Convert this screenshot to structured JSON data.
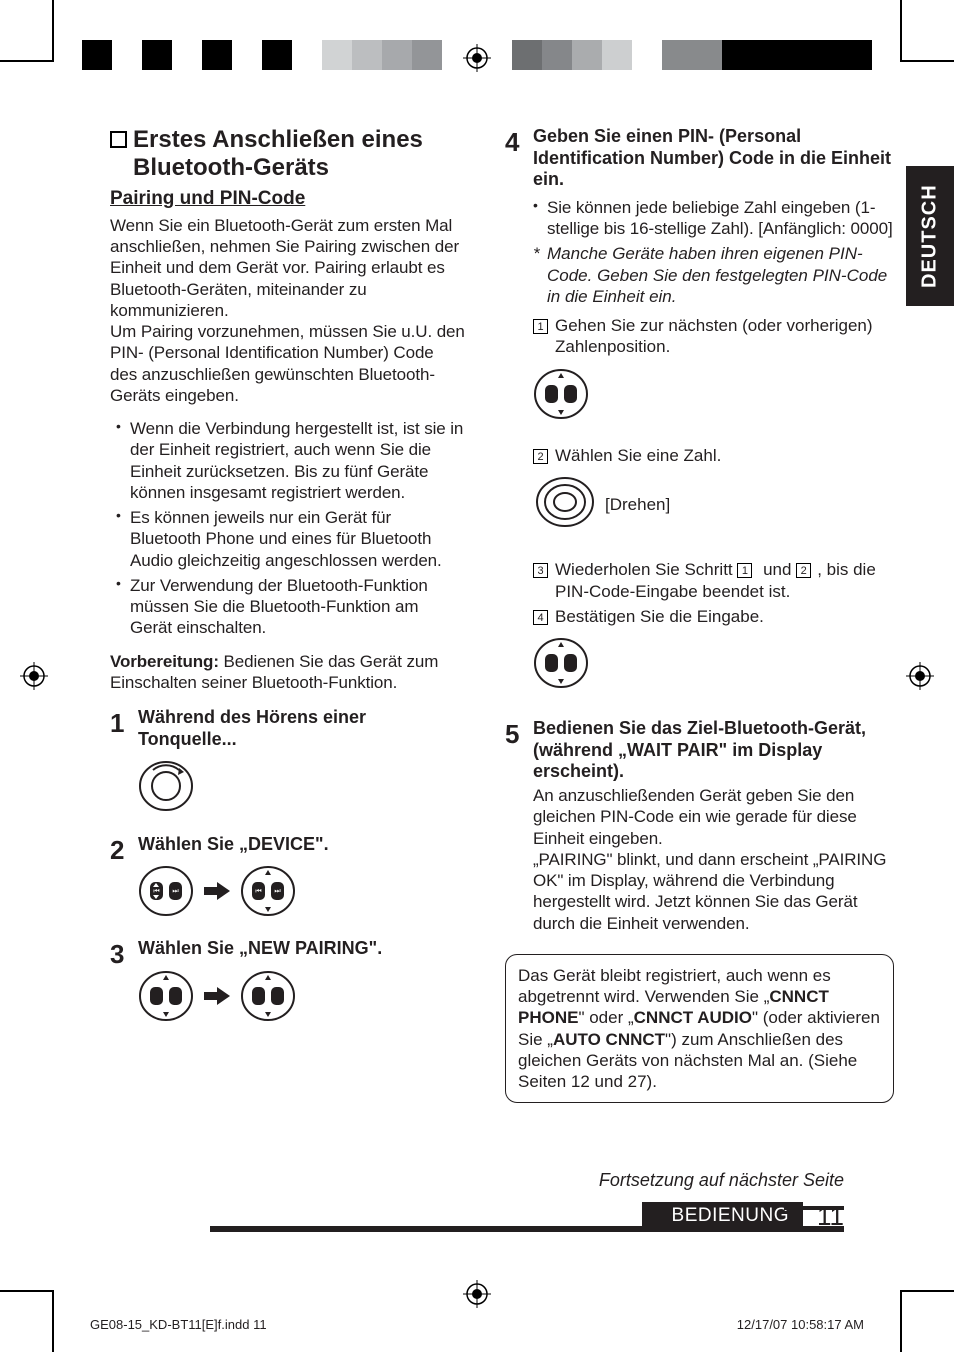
{
  "colorbar_left": [
    "#000000",
    "#ffffff",
    "#000000",
    "#ffffff",
    "#000000",
    "#ffffff",
    "#000000",
    "#ffffff",
    "#d1d3d4",
    "#bcbec0",
    "#a7a9ac",
    "#939598"
  ],
  "colorbar_right": [
    "#000000",
    "#000000",
    "#000000",
    "#000000",
    "#000000",
    "#888a8c",
    "#888a8c",
    "#ffffff",
    "#cdcfd0",
    "#aaacae",
    "#85878a",
    "#6d6f71"
  ],
  "side_tab": "DEUTSCH",
  "left": {
    "h1_line1": "Erstes Anschließen eines",
    "h1_line2": "Bluetooth-Geräts",
    "h2": "Pairing und PIN-Code",
    "intro": "Wenn Sie ein Bluetooth-Gerät zum ersten Mal anschließen, nehmen Sie Pairing zwischen der Einheit und dem Gerät vor. Pairing erlaubt es Bluetooth-Geräten, miteinander zu kommunizieren.\nUm Pairing vorzunehmen, müssen Sie u.U. den PIN- (Personal Identification Number) Code des anzuschließen gewünschten Bluetooth-Geräts eingeben.",
    "bullets": [
      "Wenn die Verbindung hergestellt ist, ist sie in der Einheit registriert, auch wenn Sie die Einheit zurücksetzen. Bis zu fünf Geräte können insgesamt registriert werden.",
      "Es können jeweils nur ein Gerät für Bluetooth Phone und eines für Bluetooth Audio gleichzeitig angeschlossen werden.",
      "Zur Verwendung der Bluetooth-Funktion müssen Sie die Bluetooth-Funktion am Gerät einschalten."
    ],
    "vorbereitung_label": "Vorbereitung:",
    "vorbereitung_text": " Bedienen Sie das Gerät zum Einschalten seiner Bluetooth-Funktion.",
    "step1": "Während des Hörens einer Tonquelle...",
    "step2": "Wählen Sie „DEVICE\".",
    "step3": "Wählen Sie „NEW PAIRING\"."
  },
  "right": {
    "step4_title": "Geben Sie einen PIN- (Personal Identification Number) Code in die Einheit ein.",
    "step4_bullet": "Sie können jede beliebige Zahl eingeben (1-stellige bis 16-stellige Zahl). [Anfänglich: 0000]",
    "step4_asterisk": "Manche Geräte haben ihren eigenen PIN-Code. Geben Sie den festgelegten PIN-Code in die Einheit ein.",
    "sub1": "Gehen Sie zur nächsten (oder vorherigen) Zahlenposition.",
    "sub2": "Wählen Sie eine Zahl.",
    "drehen": "[Drehen]",
    "sub3_a": "Wiederholen Sie Schritt ",
    "sub3_b": " und ",
    "sub3_c": ", bis die PIN-Code-Eingabe beendet ist.",
    "sub4": "Bestätigen Sie die Eingabe.",
    "step5_title": "Bedienen Sie das Ziel-Bluetooth-Gerät, (während „WAIT PAIR\" im Display erscheint).",
    "step5_body": "An anzuschließenden Gerät geben Sie den gleichen PIN-Code ein wie gerade für diese Einheit eingeben.\n„PAIRING\" blinkt, und dann erscheint „PAIRING OK\" im Display, während die Verbindung hergestellt wird. Jetzt können Sie das Gerät durch die Einheit verwenden.",
    "note_a": "Das Gerät bleibt registriert, auch wenn es abgetrennt wird. Verwenden Sie „",
    "note_b": "CNNCT PHONE",
    "note_c": "\" oder „",
    "note_d": "CNNCT AUDIO",
    "note_e": "\" (oder aktivieren Sie „",
    "note_f": "AUTO CNNCT",
    "note_g": "\") zum Anschließen des gleichen Geräts von nächsten Mal an. (Siehe Seiten 12 und 27)."
  },
  "footer": {
    "continue": "Fortsetzung auf nächster Seite",
    "section": "BEDIENUNG",
    "page": "11",
    "file": "GE08-15_KD-BT11[E]f.indd   11",
    "timestamp": "12/17/07   10:58:17 AM"
  }
}
